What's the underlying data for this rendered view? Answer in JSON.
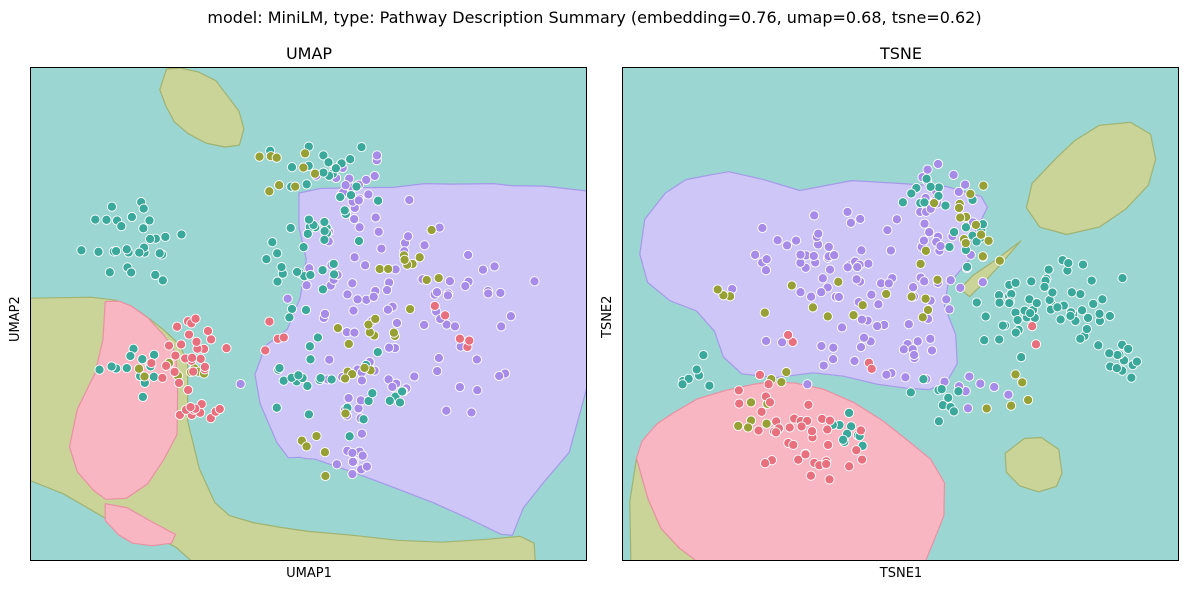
{
  "suptitle": "model: MiniLM, type: Pathway Description Summary (embedding=0.76, umap=0.68, tsne=0.62)",
  "colors": {
    "background_region": "#9bd6d3",
    "pink_region": "#f8b6c3",
    "purple_region": "#cfc6f8",
    "olive_region": "#cad398",
    "pink_point": "#e8707e",
    "teal_point": "#3aa89a",
    "purple_point": "#a78be8",
    "olive_point": "#97a035"
  },
  "chart_data": [
    {
      "type": "scatter",
      "title": "UMAP",
      "xlabel": "UMAP1",
      "ylabel": "UMAP2",
      "xticks": [],
      "yticks": [],
      "xlim": [
        0,
        100
      ],
      "ylim": [
        0,
        100
      ],
      "grid": false,
      "legend": "none",
      "background_region": "teal",
      "regions": [
        {
          "color": "olive",
          "points": [
            [
              24.5,
              99.6
            ],
            [
              27,
              99.8
            ],
            [
              30.2,
              99.0
            ],
            [
              33.4,
              97.2
            ],
            [
              35.2,
              94.5
            ],
            [
              37.5,
              91.1
            ],
            [
              38.4,
              87.5
            ],
            [
              37.6,
              84.2
            ],
            [
              35.0,
              83.8
            ],
            [
              31.6,
              84.6
            ],
            [
              28.4,
              86.5
            ],
            [
              25.9,
              88.9
            ],
            [
              24.4,
              92.1
            ],
            [
              23.3,
              95.4
            ]
          ]
        },
        {
          "color": "olive",
          "points": [
            [
              0,
              53.2
            ],
            [
              11,
              53.4
            ],
            [
              15.3,
              52.8
            ],
            [
              18.0,
              51.7
            ],
            [
              20.8,
              49.6
            ],
            [
              24.2,
              46.6
            ],
            [
              26.8,
              43.8
            ],
            [
              28.3,
              40.2
            ],
            [
              28.3,
              28.4
            ],
            [
              30.4,
              18.7
            ],
            [
              33.2,
              11.8
            ],
            [
              35.8,
              9.2
            ],
            [
              40,
              7.8
            ],
            [
              45,
              6.8
            ],
            [
              50,
              6.0
            ],
            [
              58,
              5.2
            ],
            [
              66,
              4.2
            ],
            [
              74,
              3.8
            ],
            [
              82,
              4.4
            ],
            [
              88,
              5.0
            ],
            [
              90.5,
              3.6
            ],
            [
              90.7,
              0
            ],
            [
              29,
              0
            ],
            [
              26.2,
              2.8
            ],
            [
              22,
              5.2
            ],
            [
              17,
              6.6
            ],
            [
              13,
              9.0
            ],
            [
              6,
              13.6
            ],
            [
              0,
              16.3
            ]
          ]
        },
        {
          "color": "pink",
          "points": [
            [
              13.5,
              52.5
            ],
            [
              16.0,
              52.6
            ],
            [
              18.2,
              51.6
            ],
            [
              21.2,
              49.2
            ],
            [
              24.1,
              45.6
            ],
            [
              26.2,
              42.0
            ],
            [
              26.5,
              34.0
            ],
            [
              26.4,
              25.6
            ],
            [
              24.0,
              20.5
            ],
            [
              21.1,
              15.6
            ],
            [
              17.3,
              12.7
            ],
            [
              13.6,
              12.5
            ],
            [
              11.4,
              14.3
            ],
            [
              8.5,
              18.1
            ],
            [
              7.1,
              23.1
            ],
            [
              8.5,
              30.7
            ],
            [
              11.7,
              38.1
            ],
            [
              13.1,
              44.9
            ]
          ]
        },
        {
          "color": "pink",
          "points": [
            [
              13.5,
              11.6
            ],
            [
              17.4,
              10.8
            ],
            [
              22.1,
              7.8
            ],
            [
              26.1,
              5.4
            ],
            [
              25.4,
              3.6
            ],
            [
              22.0,
              3.1
            ],
            [
              18.4,
              3.6
            ],
            [
              15.9,
              5.3
            ],
            [
              13.5,
              8.2
            ]
          ]
        },
        {
          "color": "purple",
          "points": [
            [
              48.3,
              74.5
            ],
            [
              52.1,
              75.4
            ],
            [
              59.8,
              75.6
            ],
            [
              65.1,
              75.6
            ],
            [
              70.8,
              76.4
            ],
            [
              76.0,
              76.3
            ],
            [
              83.2,
              76.4
            ],
            [
              86.4,
              76.0
            ],
            [
              92.4,
              75.9
            ],
            [
              100,
              74.9
            ],
            [
              100,
              35.2
            ],
            [
              96.8,
              22.0
            ],
            [
              92.5,
              16.3
            ],
            [
              88.6,
              10.8
            ],
            [
              86.6,
              5.2
            ],
            [
              84.6,
              5.4
            ],
            [
              78.7,
              8.6
            ],
            [
              72.6,
              11.7
            ],
            [
              66.0,
              14.6
            ],
            [
              58.4,
              17.8
            ],
            [
              51.2,
              20.6
            ],
            [
              49.6,
              20.7
            ],
            [
              48.4,
              21.0
            ],
            [
              46.4,
              20.9
            ],
            [
              44.3,
              24.0
            ],
            [
              41.3,
              31.9
            ],
            [
              40.4,
              37.8
            ],
            [
              42.3,
              43.6
            ],
            [
              46.2,
              46.9
            ],
            [
              48.5,
              53.2
            ],
            [
              49.6,
              61.1
            ],
            [
              48.3,
              67.6
            ]
          ]
        }
      ],
      "series": [
        {
          "color": "purple",
          "count": 128
        },
        {
          "color": "teal",
          "count": 124
        },
        {
          "color": "olive",
          "count": 46
        },
        {
          "color": "pink",
          "count": 48
        }
      ]
    },
    {
      "type": "scatter",
      "title": "TSNE",
      "xlabel": "TSNE1",
      "ylabel": "TSNE2",
      "xticks": [],
      "yticks": [],
      "xlim": [
        0,
        100
      ],
      "ylim": [
        0,
        100
      ],
      "grid": false,
      "legend": "none",
      "background_region": "teal",
      "regions": [
        {
          "color": "olive",
          "points": [
            [
              85.7,
              88.2
            ],
            [
              91.3,
              88.8
            ],
            [
              94.9,
              86.4
            ],
            [
              95.8,
              81.3
            ],
            [
              94.5,
              76.1
            ],
            [
              90.4,
              71.2
            ],
            [
              85.7,
              67.6
            ],
            [
              79.8,
              66.1
            ],
            [
              75.0,
              67.6
            ],
            [
              72.6,
              71.5
            ],
            [
              73.6,
              76.4
            ],
            [
              77.9,
              81.5
            ],
            [
              81.3,
              85.1
            ]
          ]
        },
        {
          "color": "olive",
          "points": [
            [
              71.6,
              64.8
            ],
            [
              67.4,
              61.2
            ],
            [
              63.0,
              57.8
            ],
            [
              60.7,
              55.1
            ],
            [
              62.4,
              53.5
            ],
            [
              64.9,
              56.3
            ],
            [
              68.0,
              60.1
            ]
          ]
        },
        {
          "color": "olive",
          "points": [
            [
              72.2,
              24.8
            ],
            [
              75.3,
              25.0
            ],
            [
              78.4,
              22.6
            ],
            [
              79.0,
              17.8
            ],
            [
              78.0,
              15.1
            ],
            [
              74.8,
              14.0
            ],
            [
              71.4,
              15.2
            ],
            [
              69.0,
              18.0
            ],
            [
              68.8,
              21.8
            ]
          ]
        },
        {
          "color": "olive",
          "points": [
            [
              2.6,
              20.8
            ],
            [
              4.7,
              12.5
            ],
            [
              7.0,
              6.6
            ],
            [
              10.3,
              2.6
            ],
            [
              13.4,
              0
            ],
            [
              1.6,
              0
            ],
            [
              1.4,
              12.0
            ],
            [
              2.6,
              20.8
            ]
          ]
        },
        {
          "color": "pink",
          "points": [
            [
              23.8,
              35.8
            ],
            [
              27.1,
              36.3
            ],
            [
              31.2,
              36.0
            ],
            [
              36.1,
              34.8
            ],
            [
              41.6,
              32.1
            ],
            [
              46.8,
              28.4
            ],
            [
              51.6,
              24.1
            ],
            [
              55.4,
              20.6
            ],
            [
              57.9,
              15.8
            ],
            [
              57.8,
              9.2
            ],
            [
              56.0,
              4.1
            ],
            [
              54.5,
              0
            ],
            [
              13.4,
              0
            ],
            [
              10.3,
              2.6
            ],
            [
              7.0,
              6.6
            ],
            [
              4.7,
              12.5
            ],
            [
              2.6,
              20.8
            ],
            [
              3.6,
              24.3
            ],
            [
              6.3,
              27.8
            ],
            [
              9.4,
              30.1
            ],
            [
              13.5,
              32.8
            ],
            [
              18.8,
              34.6
            ]
          ]
        },
        {
          "color": "purple",
          "points": [
            [
              15.6,
              78.1
            ],
            [
              19.2,
              78.8
            ],
            [
              25.4,
              77.2
            ],
            [
              31.9,
              75.0
            ],
            [
              41.3,
              77.0
            ],
            [
              50.4,
              76.4
            ],
            [
              58.2,
              75.8
            ],
            [
              64.5,
              73.8
            ],
            [
              65.6,
              71.6
            ],
            [
              63.9,
              67.7
            ],
            [
              62.4,
              64.1
            ],
            [
              62.6,
              61.4
            ],
            [
              60.1,
              58.0
            ],
            [
              58.5,
              55.8
            ],
            [
              57.9,
              51.6
            ],
            [
              59.9,
              45.9
            ],
            [
              60.2,
              40.0
            ],
            [
              58.3,
              36.2
            ],
            [
              55.2,
              34.7
            ],
            [
              50.9,
              35.0
            ],
            [
              45.7,
              35.8
            ],
            [
              39.8,
              37.4
            ],
            [
              34.3,
              38.1
            ],
            [
              27.5,
              37.1
            ],
            [
              21.5,
              37.9
            ],
            [
              18.2,
              41.3
            ],
            [
              16.6,
              46.5
            ],
            [
              13.4,
              50.6
            ],
            [
              8.6,
              52.7
            ],
            [
              4.6,
              56.4
            ],
            [
              3.2,
              62.1
            ],
            [
              4.1,
              69.2
            ],
            [
              7.8,
              74.5
            ],
            [
              11.5,
              77.2
            ]
          ]
        }
      ],
      "series": [
        {
          "color": "purple",
          "count": 128
        },
        {
          "color": "teal",
          "count": 124
        },
        {
          "color": "olive",
          "count": 46
        },
        {
          "color": "pink",
          "count": 48
        }
      ]
    }
  ]
}
